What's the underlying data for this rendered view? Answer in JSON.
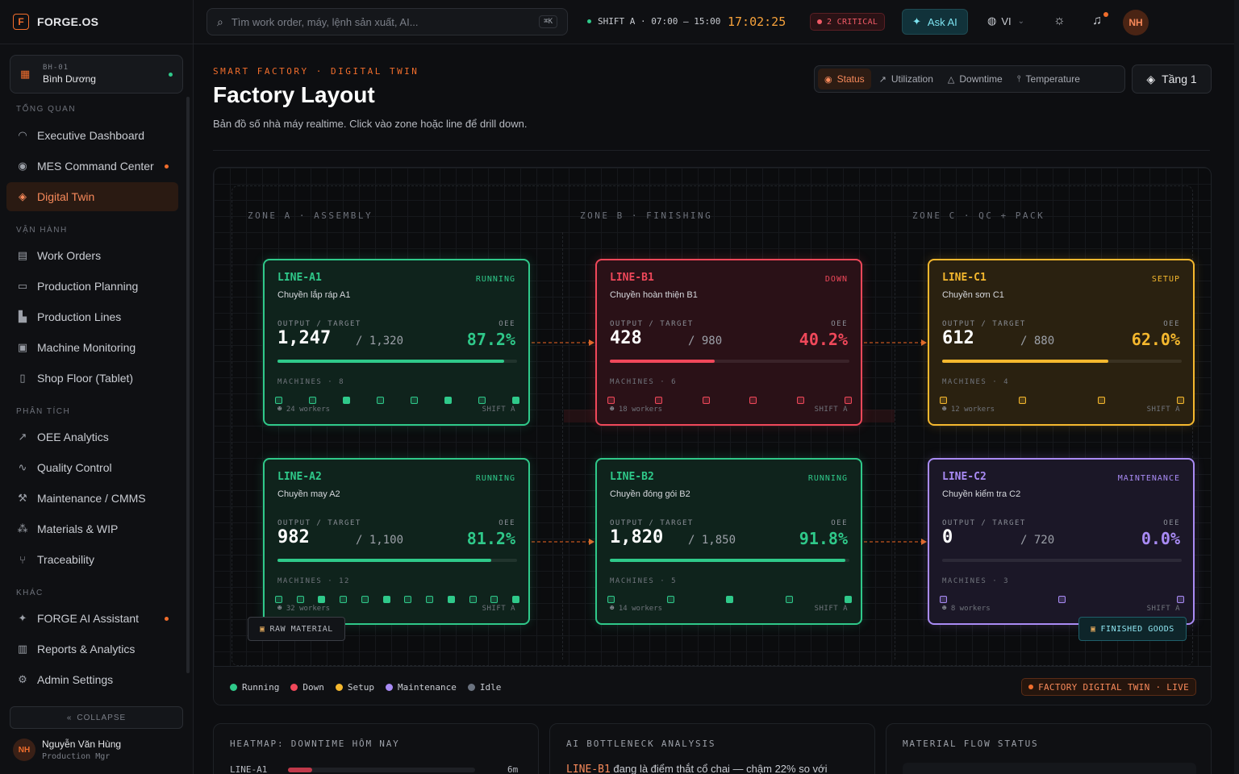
{
  "brand": {
    "name": "FORGE.OS",
    "logo": "F"
  },
  "site": {
    "code": "BH-01",
    "name": "Bình Dương"
  },
  "nav": {
    "sections": [
      "TỔNG QUAN",
      "VẬN HÀNH",
      "PHÂN TÍCH",
      "KHÁC"
    ],
    "items": [
      {
        "label": "Executive Dashboard",
        "icon": "gauge-icon"
      },
      {
        "label": "MES Command Center",
        "icon": "broadcast-icon"
      },
      {
        "label": "Digital Twin",
        "icon": "layers-icon"
      },
      {
        "label": "Work Orders",
        "icon": "clipboard-icon"
      },
      {
        "label": "Production Planning",
        "icon": "calendar-icon"
      },
      {
        "label": "Production Lines",
        "icon": "factory-icon"
      },
      {
        "label": "Machine Monitoring",
        "icon": "cpu-icon"
      },
      {
        "label": "Shop Floor (Tablet)",
        "icon": "tablet-icon"
      },
      {
        "label": "OEE Analytics",
        "icon": "trend-icon"
      },
      {
        "label": "Quality Control",
        "icon": "pulse-icon"
      },
      {
        "label": "Maintenance / CMMS",
        "icon": "wrench-icon"
      },
      {
        "label": "Materials & WIP",
        "icon": "boxes-icon"
      },
      {
        "label": "Traceability",
        "icon": "branch-icon"
      },
      {
        "label": "FORGE AI Assistant",
        "icon": "sparkles-icon"
      },
      {
        "label": "Reports & Analytics",
        "icon": "bar-chart-icon"
      },
      {
        "label": "Admin Settings",
        "icon": "gear-icon"
      }
    ],
    "collapse": "COLLAPSE"
  },
  "user": {
    "initials": "NH",
    "name": "Nguyễn Văn Hùng",
    "role": "Production Mgr"
  },
  "topbar": {
    "search_placeholder": "Tìm work order, máy, lệnh sản xuất, AI...",
    "search_kbd": "⌘K",
    "shift": "SHIFT A · 07:00 – 15:00",
    "clock": "17:02:25",
    "critical": "2 CRITICAL",
    "ask_ai": "Ask AI",
    "lang": "VI",
    "avatar": "NH"
  },
  "header": {
    "kicker": "SMART FACTORY · DIGITAL TWIN",
    "title": "Factory Layout",
    "subtitle": "Bản đồ số nhà máy realtime. Click vào zone hoặc line để drill down.",
    "views": [
      "Status",
      "Utilization",
      "Downtime",
      "Temperature"
    ],
    "floor": "Tầng 1"
  },
  "zones": [
    "ZONE A · ASSEMBLY",
    "ZONE B · FINISHING",
    "ZONE C · QC + PACK"
  ],
  "card_labels": {
    "output": "OUTPUT / TARGET",
    "oee": "OEE",
    "machines": "MACHINES"
  },
  "lines": [
    {
      "id": "LINE-A1",
      "name": "Chuyền lắp ráp A1",
      "status": "RUNNING",
      "output": "1,247",
      "target": "/ 1,320",
      "oee": "87.2%",
      "progress": 0.945,
      "machines": "MACHINES · 8",
      "machine_count": 8,
      "workers": "24 workers",
      "shift": "SHIFT A",
      "color": "#2fc98a",
      "bg": "#0f231c"
    },
    {
      "id": "LINE-B1",
      "name": "Chuyền hoàn thiện B1",
      "status": "DOWN",
      "output": "428",
      "target": "/ 980",
      "oee": "40.2%",
      "progress": 0.437,
      "machines": "MACHINES · 6",
      "machine_count": 6,
      "workers": "18 workers",
      "shift": "SHIFT A",
      "color": "#f0485a",
      "bg": "#2a1117"
    },
    {
      "id": "LINE-C1",
      "name": "Chuyền sơn C1",
      "status": "SETUP",
      "output": "612",
      "target": "/ 880",
      "oee": "62.0%",
      "progress": 0.695,
      "machines": "MACHINES · 4",
      "machine_count": 4,
      "workers": "12 workers",
      "shift": "SHIFT A",
      "color": "#f5b82e",
      "bg": "#2a2110"
    },
    {
      "id": "LINE-A2",
      "name": "Chuyền may A2",
      "status": "RUNNING",
      "output": "982",
      "target": "/ 1,100",
      "oee": "81.2%",
      "progress": 0.893,
      "machines": "MACHINES · 12",
      "machine_count": 12,
      "workers": "32 workers",
      "shift": "SHIFT A",
      "color": "#2fc98a",
      "bg": "#0f231c"
    },
    {
      "id": "LINE-B2",
      "name": "Chuyền đóng gói B2",
      "status": "RUNNING",
      "output": "1,820",
      "target": "/ 1,850",
      "oee": "91.8%",
      "progress": 0.984,
      "machines": "MACHINES · 5",
      "machine_count": 5,
      "workers": "14 workers",
      "shift": "SHIFT A",
      "color": "#2fc98a",
      "bg": "#0f231c"
    },
    {
      "id": "LINE-C2",
      "name": "Chuyền kiểm tra C2",
      "status": "MAINTENANCE",
      "output": "0",
      "target": "/ 720",
      "oee": "0.0%",
      "progress": 0,
      "machines": "MACHINES · 3",
      "machine_count": 3,
      "workers": "8 workers",
      "shift": "SHIFT A",
      "color": "#a98bf5",
      "bg": "#1b1727"
    }
  ],
  "tags": {
    "raw": "RAW MATERIAL",
    "finished": "FINISHED GOODS"
  },
  "legend": [
    {
      "label": "Running",
      "color": "#2fc98a"
    },
    {
      "label": "Down",
      "color": "#f0485a"
    },
    {
      "label": "Setup",
      "color": "#f5b82e"
    },
    {
      "label": "Maintenance",
      "color": "#a98bf5"
    },
    {
      "label": "Idle",
      "color": "#6b7380"
    }
  ],
  "live_badge": "FACTORY DIGITAL TWIN · LIVE",
  "panels": {
    "heatmap": {
      "title": "HEATMAP: DOWNTIME HÔM NAY",
      "row_label": "LINE-A1",
      "row_value": "6m"
    },
    "ai": {
      "title": "AI BOTTLENECK ANALYSIS",
      "line": "LINE-B1",
      "text": " đang là điểm thắt cổ chai — chậm 22% so với"
    },
    "flow": {
      "title": "MATERIAL FLOW STATUS"
    }
  }
}
